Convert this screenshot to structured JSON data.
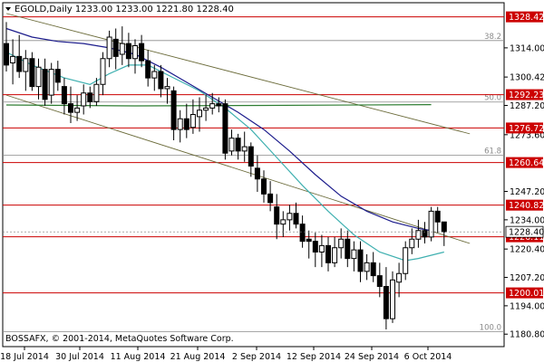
{
  "header": {
    "symbol_line": "EGOLD,Daily  1233.00 1233.00 1221.80 1228.40",
    "dropdown_icon": "triangle-down-icon"
  },
  "copyright": "BOSSAFX, © 2001-2014, MetaQuotes Software Corp.",
  "colors": {
    "candle": "#000000",
    "level_line": "#cc0000",
    "level_label_bg": "#cc0000",
    "channel": "#6b6b3a",
    "ma_fast": "#3fb0b0",
    "ma_slow": "#1c1c8c",
    "ma_flat": "#2e7d32",
    "fib_line": "#8a8a8a",
    "current_label_bg": "#ffffff"
  },
  "chart_data": {
    "type": "candlestick",
    "instrument": "EGOLD",
    "timeframe": "Daily",
    "ohlc_header": {
      "open": 1233.0,
      "high": 1233.0,
      "low": 1221.8,
      "close": 1228.4
    },
    "ylim": [
      1175,
      1335
    ],
    "y_ticks": [
      "1328.42",
      "1314.00",
      "1300.42",
      "1287.20",
      "1273.60",
      "1260.64",
      "1247.20",
      "1234.00",
      "1228.40",
      "1226.11",
      "1220.40",
      "1207.20",
      "1194.00",
      "1180.80"
    ],
    "x_ticks": [
      "18 Jul 2014",
      "30 Jul 2014",
      "11 Aug 2014",
      "21 Aug 2014",
      "2 Sep 2014",
      "12 Sep 2014",
      "24 Sep 2014",
      "6 Oct 2014"
    ],
    "current_price": 1228.4,
    "levels": [
      {
        "value": 1328.42,
        "label": "1328.42"
      },
      {
        "value": 1292.23,
        "label": "1292.23"
      },
      {
        "value": 1276.72,
        "label": "1276.72"
      },
      {
        "value": 1260.64,
        "label": "1260.64"
      },
      {
        "value": 1240.82,
        "label": "1240.82"
      },
      {
        "value": 1226.11,
        "label": "1226.11"
      },
      {
        "value": 1200.01,
        "label": "1200.01"
      }
    ],
    "fibonacci": [
      {
        "label": "38.2",
        "value": 1317.4
      },
      {
        "label": "50.0",
        "value": 1288.8
      },
      {
        "label": "61.8",
        "value": 1264.0
      },
      {
        "label": "100.0",
        "value": 1181.9
      }
    ],
    "candles": [
      {
        "o": 1316,
        "h": 1326,
        "l": 1303,
        "c": 1306
      },
      {
        "o": 1307,
        "h": 1318,
        "l": 1297,
        "c": 1310
      },
      {
        "o": 1310,
        "h": 1320,
        "l": 1300,
        "c": 1303
      },
      {
        "o": 1303,
        "h": 1313,
        "l": 1294,
        "c": 1309
      },
      {
        "o": 1309,
        "h": 1312,
        "l": 1294,
        "c": 1296
      },
      {
        "o": 1296,
        "h": 1309,
        "l": 1290,
        "c": 1305
      },
      {
        "o": 1304,
        "h": 1309,
        "l": 1287,
        "c": 1290
      },
      {
        "o": 1292,
        "h": 1307,
        "l": 1288,
        "c": 1304
      },
      {
        "o": 1304,
        "h": 1308,
        "l": 1294,
        "c": 1298
      },
      {
        "o": 1296,
        "h": 1300,
        "l": 1283,
        "c": 1288
      },
      {
        "o": 1288,
        "h": 1296,
        "l": 1279,
        "c": 1284
      },
      {
        "o": 1284,
        "h": 1292,
        "l": 1280,
        "c": 1286
      },
      {
        "o": 1287,
        "h": 1297,
        "l": 1283,
        "c": 1293
      },
      {
        "o": 1293,
        "h": 1296,
        "l": 1286,
        "c": 1289
      },
      {
        "o": 1289,
        "h": 1300,
        "l": 1287,
        "c": 1297
      },
      {
        "o": 1297,
        "h": 1312,
        "l": 1292,
        "c": 1309
      },
      {
        "o": 1309,
        "h": 1322,
        "l": 1305,
        "c": 1319
      },
      {
        "o": 1318,
        "h": 1323,
        "l": 1304,
        "c": 1310
      },
      {
        "o": 1311,
        "h": 1324,
        "l": 1306,
        "c": 1316
      },
      {
        "o": 1316,
        "h": 1321,
        "l": 1305,
        "c": 1309
      },
      {
        "o": 1309,
        "h": 1318,
        "l": 1302,
        "c": 1315
      },
      {
        "o": 1316,
        "h": 1320,
        "l": 1305,
        "c": 1308
      },
      {
        "o": 1308,
        "h": 1313,
        "l": 1296,
        "c": 1300
      },
      {
        "o": 1300,
        "h": 1306,
        "l": 1294,
        "c": 1303
      },
      {
        "o": 1303,
        "h": 1306,
        "l": 1291,
        "c": 1295
      },
      {
        "o": 1295,
        "h": 1300,
        "l": 1288,
        "c": 1296
      },
      {
        "o": 1294,
        "h": 1296,
        "l": 1271,
        "c": 1276
      },
      {
        "o": 1276,
        "h": 1285,
        "l": 1270,
        "c": 1281
      },
      {
        "o": 1281,
        "h": 1288,
        "l": 1272,
        "c": 1276
      },
      {
        "o": 1277,
        "h": 1290,
        "l": 1274,
        "c": 1283
      },
      {
        "o": 1282,
        "h": 1291,
        "l": 1275,
        "c": 1285
      },
      {
        "o": 1285,
        "h": 1292,
        "l": 1280,
        "c": 1286
      },
      {
        "o": 1286,
        "h": 1293,
        "l": 1283,
        "c": 1288
      },
      {
        "o": 1288,
        "h": 1291,
        "l": 1284,
        "c": 1287
      },
      {
        "o": 1288,
        "h": 1290,
        "l": 1262,
        "c": 1265
      },
      {
        "o": 1266,
        "h": 1276,
        "l": 1264,
        "c": 1272
      },
      {
        "o": 1272,
        "h": 1274,
        "l": 1262,
        "c": 1266
      },
      {
        "o": 1266,
        "h": 1275,
        "l": 1261,
        "c": 1268
      },
      {
        "o": 1268,
        "h": 1270,
        "l": 1254,
        "c": 1259
      },
      {
        "o": 1258,
        "h": 1264,
        "l": 1247,
        "c": 1253
      },
      {
        "o": 1253,
        "h": 1257,
        "l": 1242,
        "c": 1246
      },
      {
        "o": 1246,
        "h": 1252,
        "l": 1238,
        "c": 1242
      },
      {
        "o": 1240,
        "h": 1246,
        "l": 1225,
        "c": 1232
      },
      {
        "o": 1232,
        "h": 1238,
        "l": 1226,
        "c": 1234
      },
      {
        "o": 1234,
        "h": 1241,
        "l": 1229,
        "c": 1237
      },
      {
        "o": 1237,
        "h": 1242,
        "l": 1230,
        "c": 1232
      },
      {
        "o": 1232,
        "h": 1236,
        "l": 1221,
        "c": 1224
      },
      {
        "o": 1225,
        "h": 1229,
        "l": 1216,
        "c": 1224
      },
      {
        "o": 1224,
        "h": 1228,
        "l": 1212,
        "c": 1219
      },
      {
        "o": 1219,
        "h": 1227,
        "l": 1212,
        "c": 1222
      },
      {
        "o": 1222,
        "h": 1226,
        "l": 1210,
        "c": 1214
      },
      {
        "o": 1214,
        "h": 1226,
        "l": 1212,
        "c": 1221
      },
      {
        "o": 1221,
        "h": 1230,
        "l": 1216,
        "c": 1225
      },
      {
        "o": 1225,
        "h": 1229,
        "l": 1212,
        "c": 1216
      },
      {
        "o": 1216,
        "h": 1224,
        "l": 1210,
        "c": 1220
      },
      {
        "o": 1220,
        "h": 1224,
        "l": 1205,
        "c": 1210
      },
      {
        "o": 1210,
        "h": 1218,
        "l": 1206,
        "c": 1214
      },
      {
        "o": 1214,
        "h": 1219,
        "l": 1205,
        "c": 1208
      },
      {
        "o": 1208,
        "h": 1214,
        "l": 1198,
        "c": 1203
      },
      {
        "o": 1203,
        "h": 1212,
        "l": 1183,
        "c": 1188
      },
      {
        "o": 1188,
        "h": 1210,
        "l": 1186,
        "c": 1206
      },
      {
        "o": 1205,
        "h": 1214,
        "l": 1198,
        "c": 1209
      },
      {
        "o": 1209,
        "h": 1224,
        "l": 1206,
        "c": 1221
      },
      {
        "o": 1221,
        "h": 1230,
        "l": 1218,
        "c": 1225
      },
      {
        "o": 1225,
        "h": 1234,
        "l": 1221,
        "c": 1229
      },
      {
        "o": 1229,
        "h": 1233,
        "l": 1223,
        "c": 1226
      },
      {
        "o": 1226,
        "h": 1240,
        "l": 1224,
        "c": 1238
      },
      {
        "o": 1238,
        "h": 1240,
        "l": 1228,
        "c": 1233
      },
      {
        "o": 1233,
        "h": 1233,
        "l": 1221.8,
        "c": 1228.4
      }
    ],
    "moving_averages": [
      {
        "name": "ma_fast",
        "points": [
          [
            0,
            1312
          ],
          [
            4,
            1306
          ],
          [
            9,
            1300
          ],
          [
            13,
            1297
          ],
          [
            16,
            1302
          ],
          [
            19,
            1306
          ],
          [
            22,
            1306
          ],
          [
            26,
            1300
          ],
          [
            30,
            1294
          ],
          [
            34,
            1286
          ],
          [
            38,
            1276
          ],
          [
            42,
            1263
          ],
          [
            46,
            1250
          ],
          [
            50,
            1238
          ],
          [
            54,
            1227
          ],
          [
            58,
            1219
          ],
          [
            62,
            1215
          ],
          [
            64,
            1216
          ],
          [
            68,
            1219
          ]
        ]
      },
      {
        "name": "ma_slow",
        "points": [
          [
            0,
            1323
          ],
          [
            4,
            1319
          ],
          [
            8,
            1317
          ],
          [
            12,
            1316
          ],
          [
            16,
            1314
          ],
          [
            20,
            1311
          ],
          [
            24,
            1305
          ],
          [
            28,
            1298
          ],
          [
            32,
            1291
          ],
          [
            36,
            1284
          ],
          [
            40,
            1276
          ],
          [
            44,
            1266
          ],
          [
            48,
            1255
          ],
          [
            52,
            1245
          ],
          [
            56,
            1238
          ],
          [
            60,
            1233
          ],
          [
            64,
            1230
          ],
          [
            66,
            1229
          ]
        ]
      },
      {
        "name": "ma_flat",
        "points": [
          [
            0,
            1287.4
          ],
          [
            20,
            1287.0
          ],
          [
            40,
            1287.2
          ],
          [
            66,
            1287.6
          ]
        ]
      }
    ],
    "channel_lines": [
      {
        "from": [
          0,
          1330
        ],
        "to": [
          72,
          1274
        ]
      },
      {
        "from": [
          0,
          1292
        ],
        "to": [
          72,
          1223
        ]
      }
    ]
  }
}
